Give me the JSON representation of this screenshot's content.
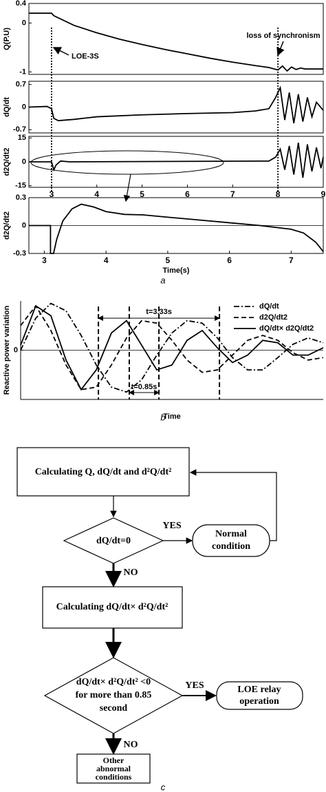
{
  "chart_data": [
    {
      "type": "line",
      "ylabel": "Q(P.U)",
      "xlim": [
        2.5,
        9
      ],
      "ylim": [
        -1.05,
        0.4
      ],
      "yticks": [
        0.4,
        0,
        -1
      ],
      "x": [
        2.5,
        3.0,
        3.05,
        3.5,
        4,
        4.5,
        5,
        5.5,
        6,
        6.5,
        7,
        7.5,
        7.8,
        8.0,
        8.1,
        8.2,
        8.3,
        8.4,
        8.5,
        8.6,
        8.8,
        9.0
      ],
      "series": [
        {
          "color": "#000000",
          "style": "solid",
          "values": [
            0.2,
            0.2,
            0.15,
            -0.05,
            -0.2,
            -0.33,
            -0.44,
            -0.54,
            -0.63,
            -0.72,
            -0.8,
            -0.87,
            -0.91,
            -0.96,
            -0.88,
            -0.98,
            -0.9,
            -0.95,
            -0.92,
            -0.94,
            -0.94,
            -0.94
          ]
        }
      ],
      "markers": [
        3,
        8
      ],
      "annotations": [
        "LOE-3S",
        "loss of synchronism"
      ]
    },
    {
      "type": "line",
      "ylabel": "dQ/dt",
      "xlim": [
        2.5,
        9
      ],
      "ylim": [
        -0.8,
        0.8
      ],
      "yticks": [
        0.7,
        0,
        -0.7
      ],
      "x": [
        2.5,
        2.9,
        3.0,
        3.05,
        3.15,
        3.5,
        4,
        5,
        6,
        7,
        7.5,
        7.8,
        7.95,
        8.05,
        8.15,
        8.25,
        8.35,
        8.45,
        8.55,
        8.65,
        8.75,
        8.85,
        9.0
      ],
      "series": [
        {
          "color": "#000000",
          "style": "solid",
          "values": [
            0,
            0.02,
            -0.05,
            -0.35,
            -0.42,
            -0.38,
            -0.3,
            -0.24,
            -0.2,
            -0.17,
            -0.12,
            -0.05,
            0.3,
            0.6,
            -0.4,
            0.45,
            -0.5,
            0.4,
            -0.45,
            0.3,
            -0.3,
            0.15,
            -0.1
          ]
        }
      ]
    },
    {
      "type": "line",
      "ylabel": "d2Q/dt2",
      "xlim": [
        2.5,
        9
      ],
      "ylim": [
        -16,
        16
      ],
      "yticks": [
        15,
        0,
        -15
      ],
      "xticks": [
        3,
        4,
        5,
        6,
        7,
        8,
        9
      ],
      "x": [
        2.5,
        3.0,
        3.05,
        3.1,
        3.2,
        3.4,
        7.8,
        7.95,
        8.05,
        8.15,
        8.25,
        8.35,
        8.45,
        8.55,
        8.65,
        8.75,
        8.85,
        8.95,
        9.0
      ],
      "series": [
        {
          "color": "#000000",
          "style": "solid",
          "values": [
            0,
            0,
            -5,
            -2,
            0.5,
            0,
            0.5,
            3,
            8,
            -5,
            10,
            -8,
            12,
            -10,
            11,
            -6,
            9,
            -4,
            3
          ]
        }
      ]
    },
    {
      "type": "line",
      "ylabel": "d2Q/dt2",
      "xlabel": "Time(s)",
      "xlim": [
        2.75,
        7.52
      ],
      "ylim": [
        -0.3,
        0.3
      ],
      "yticks": [
        0.3,
        0,
        -0.3
      ],
      "xticks": [
        3,
        4,
        5,
        6,
        7
      ],
      "zero_line": true,
      "x": [
        2.75,
        3.1,
        3.1,
        3.15,
        3.2,
        3.3,
        3.45,
        3.6,
        3.8,
        4.0,
        4.3,
        4.6,
        5.0,
        5.5,
        6.0,
        6.5,
        7.0,
        7.2,
        7.4,
        7.52
      ],
      "series": [
        {
          "color": "#000000",
          "style": "solid",
          "values": [
            0,
            0,
            -0.3,
            -0.3,
            -0.15,
            0.05,
            0.18,
            0.23,
            0.2,
            0.15,
            0.12,
            0.115,
            0.09,
            0.06,
            0.03,
            0.0,
            -0.04,
            -0.08,
            -0.18,
            -0.28
          ]
        }
      ]
    },
    {
      "type": "line",
      "ylabel": "Reactive power variation",
      "xlabel": "Time",
      "xlim": [
        0,
        10
      ],
      "ylim": [
        -1,
        1
      ],
      "yticks": [
        0
      ],
      "zero_line": true,
      "legend": "upper right",
      "x": [
        0,
        0.5,
        1,
        1.5,
        2,
        2.5,
        3,
        3.5,
        4,
        4.5,
        5,
        5.5,
        6,
        6.5,
        7,
        7.5,
        8,
        8.5,
        9,
        9.5,
        10
      ],
      "series": [
        {
          "name": "dQ/dt",
          "color": "#000000",
          "style": "dashdot",
          "values": [
            0,
            0.65,
            0.95,
            0.8,
            0.3,
            -0.3,
            -0.75,
            -0.85,
            -0.6,
            -0.1,
            0.35,
            0.6,
            0.55,
            0.25,
            -0.15,
            -0.4,
            -0.4,
            -0.15,
            0.12,
            0.25,
            0.15
          ]
        },
        {
          "name": "d2Q/dt2",
          "color": "#000000",
          "style": "dashed",
          "values": [
            0.5,
            0.9,
            0.4,
            -0.3,
            -0.8,
            -0.75,
            -0.3,
            0.25,
            0.6,
            0.55,
            0.2,
            -0.2,
            -0.45,
            -0.4,
            -0.1,
            0.2,
            0.3,
            0.2,
            -0.05,
            -0.2,
            -0.15
          ]
        },
        {
          "name": "dQ/dt× d2Q/dt2",
          "color": "#000000",
          "style": "solid",
          "values": [
            0.1,
            0.9,
            0.7,
            -0.2,
            -0.8,
            -0.4,
            0.35,
            0.6,
            0.1,
            -0.4,
            -0.3,
            0.2,
            0.4,
            0.05,
            -0.25,
            -0.1,
            0.2,
            0.15,
            -0.1,
            -0.1,
            0.05
          ]
        }
      ],
      "markers": [
        2.57,
        3.59,
        4.57,
        6.57
      ],
      "annotations": [
        "t=3.33s",
        "t=0.85s"
      ]
    }
  ],
  "captions": [
    "a",
    "b",
    "c"
  ],
  "flowchart": {
    "nodes": [
      {
        "lines": [
          "Calculating Q, dQ/dt and d²Q/dt²"
        ]
      },
      {
        "lines": [
          "dQ/dt=0"
        ]
      },
      {
        "lines": [
          "Normal",
          "condition"
        ]
      },
      {
        "lines": [
          "Calculating dQ/dt× d²Q/dt²"
        ]
      },
      {
        "lines": [
          "dQ/dt× d²Q/dt² <0",
          "for more than 0.85",
          "second"
        ]
      },
      {
        "lines": [
          "LOE relay",
          "operation"
        ]
      },
      {
        "lines": [
          "Other",
          "abnormal",
          "conditions"
        ]
      }
    ],
    "edge_labels": [
      "YES",
      "NO",
      "YES",
      "NO"
    ]
  }
}
